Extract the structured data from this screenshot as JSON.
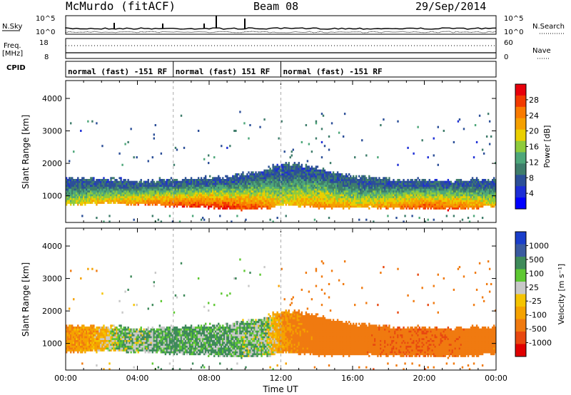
{
  "header": {
    "title": "McMurdo (fitACF)",
    "beam": "Beam 08",
    "date": "29/Sep/2014"
  },
  "strip_labels": {
    "nsky": "N.Sky",
    "nsky_top": "10^5",
    "nsky_bottom": "10^0",
    "nsearch": "N.Search",
    "nsearch_top": "10^5",
    "nsearch_bottom": "10^0",
    "freq": "Freq.",
    "freq_unit": "[MHz]",
    "freq_top": "18",
    "freq_bottom": "8",
    "nave": "Nave",
    "nave_top": "60",
    "nave_bottom": "0",
    "cpid": "CPID"
  },
  "modes": [
    {
      "label": "normal (fast) -151 RF",
      "start_hour": 0,
      "end_hour": 6
    },
    {
      "label": "normal (fast) 151 RF",
      "start_hour": 6,
      "end_hour": 12
    },
    {
      "label": "normal (fast) -151 RF",
      "start_hour": 12,
      "end_hour": 24
    }
  ],
  "chart_data": [
    {
      "type": "heatmap",
      "name": "power",
      "ylabel": "Slant Range [km]",
      "xlabel": "Time UT",
      "xlim": [
        0,
        24
      ],
      "ylim": [
        180,
        4550
      ],
      "yticks": [
        "1000",
        "2000",
        "3000",
        "4000"
      ],
      "xticks": [
        "00:00",
        "04:00",
        "08:00",
        "12:00",
        "16:00",
        "20:00",
        "00:00"
      ],
      "colorbar": {
        "label": "Power [dB]",
        "ticks": [
          "28",
          "24",
          "20",
          "16",
          "12",
          "8",
          "4"
        ],
        "colors": [
          "#e8000b",
          "#f23a00",
          "#f97a00",
          "#f5a000",
          "#eacf00",
          "#8ecb3c",
          "#4ea77a",
          "#3f7d6b",
          "#2c4f98",
          "#1d2ed6",
          "#0000ff"
        ]
      },
      "band_start_km": [
        740,
        760,
        780,
        780,
        760,
        720,
        700,
        690,
        660,
        620,
        600,
        620,
        740,
        700,
        660,
        640,
        650,
        660,
        640,
        620,
        610,
        600,
        620,
        660,
        700
      ],
      "band_end_km": [
        1480,
        1460,
        1440,
        1420,
        1380,
        1400,
        1420,
        1450,
        1480,
        1500,
        1600,
        1700,
        1920,
        1880,
        1780,
        1600,
        1520,
        1480,
        1440,
        1420,
        1400,
        1380,
        1400,
        1420,
        1440
      ],
      "band_peak_db": [
        18,
        20,
        22,
        22,
        24,
        26,
        28,
        28,
        29,
        29,
        28,
        26,
        20,
        22,
        24,
        24,
        22,
        22,
        24,
        26,
        28,
        28,
        26,
        24,
        20
      ]
    },
    {
      "type": "heatmap",
      "name": "velocity",
      "ylabel": "Slant Range [km]",
      "xlabel": "Time UT",
      "xlim": [
        0,
        24
      ],
      "ylim": [
        180,
        4550
      ],
      "yticks": [
        "1000",
        "2000",
        "3000",
        "4000"
      ],
      "xticks": [
        "00:00",
        "04:00",
        "08:00",
        "12:00",
        "16:00",
        "20:00",
        "00:00"
      ],
      "colorbar": {
        "label": "Velocity [m s⁻¹]",
        "ticks": [
          "1000",
          "500",
          "100",
          "25",
          "-25",
          "-100",
          "-500",
          "-1000"
        ],
        "colors": [
          "#1a3ecb",
          "#3a5aa0",
          "#3e8a5a",
          "#5ec832",
          "#c8c8c8",
          "#f5c400",
          "#f5a200",
          "#f07a10",
          "#e84810",
          "#e00000"
        ]
      },
      "band_velocity_ms": [
        -150,
        -120,
        -80,
        40,
        30,
        60,
        80,
        70,
        80,
        60,
        40,
        40,
        -120,
        -200,
        -240,
        -260,
        -260,
        -280,
        -300,
        -300,
        -320,
        -300,
        -280,
        -260,
        -220
      ]
    }
  ]
}
